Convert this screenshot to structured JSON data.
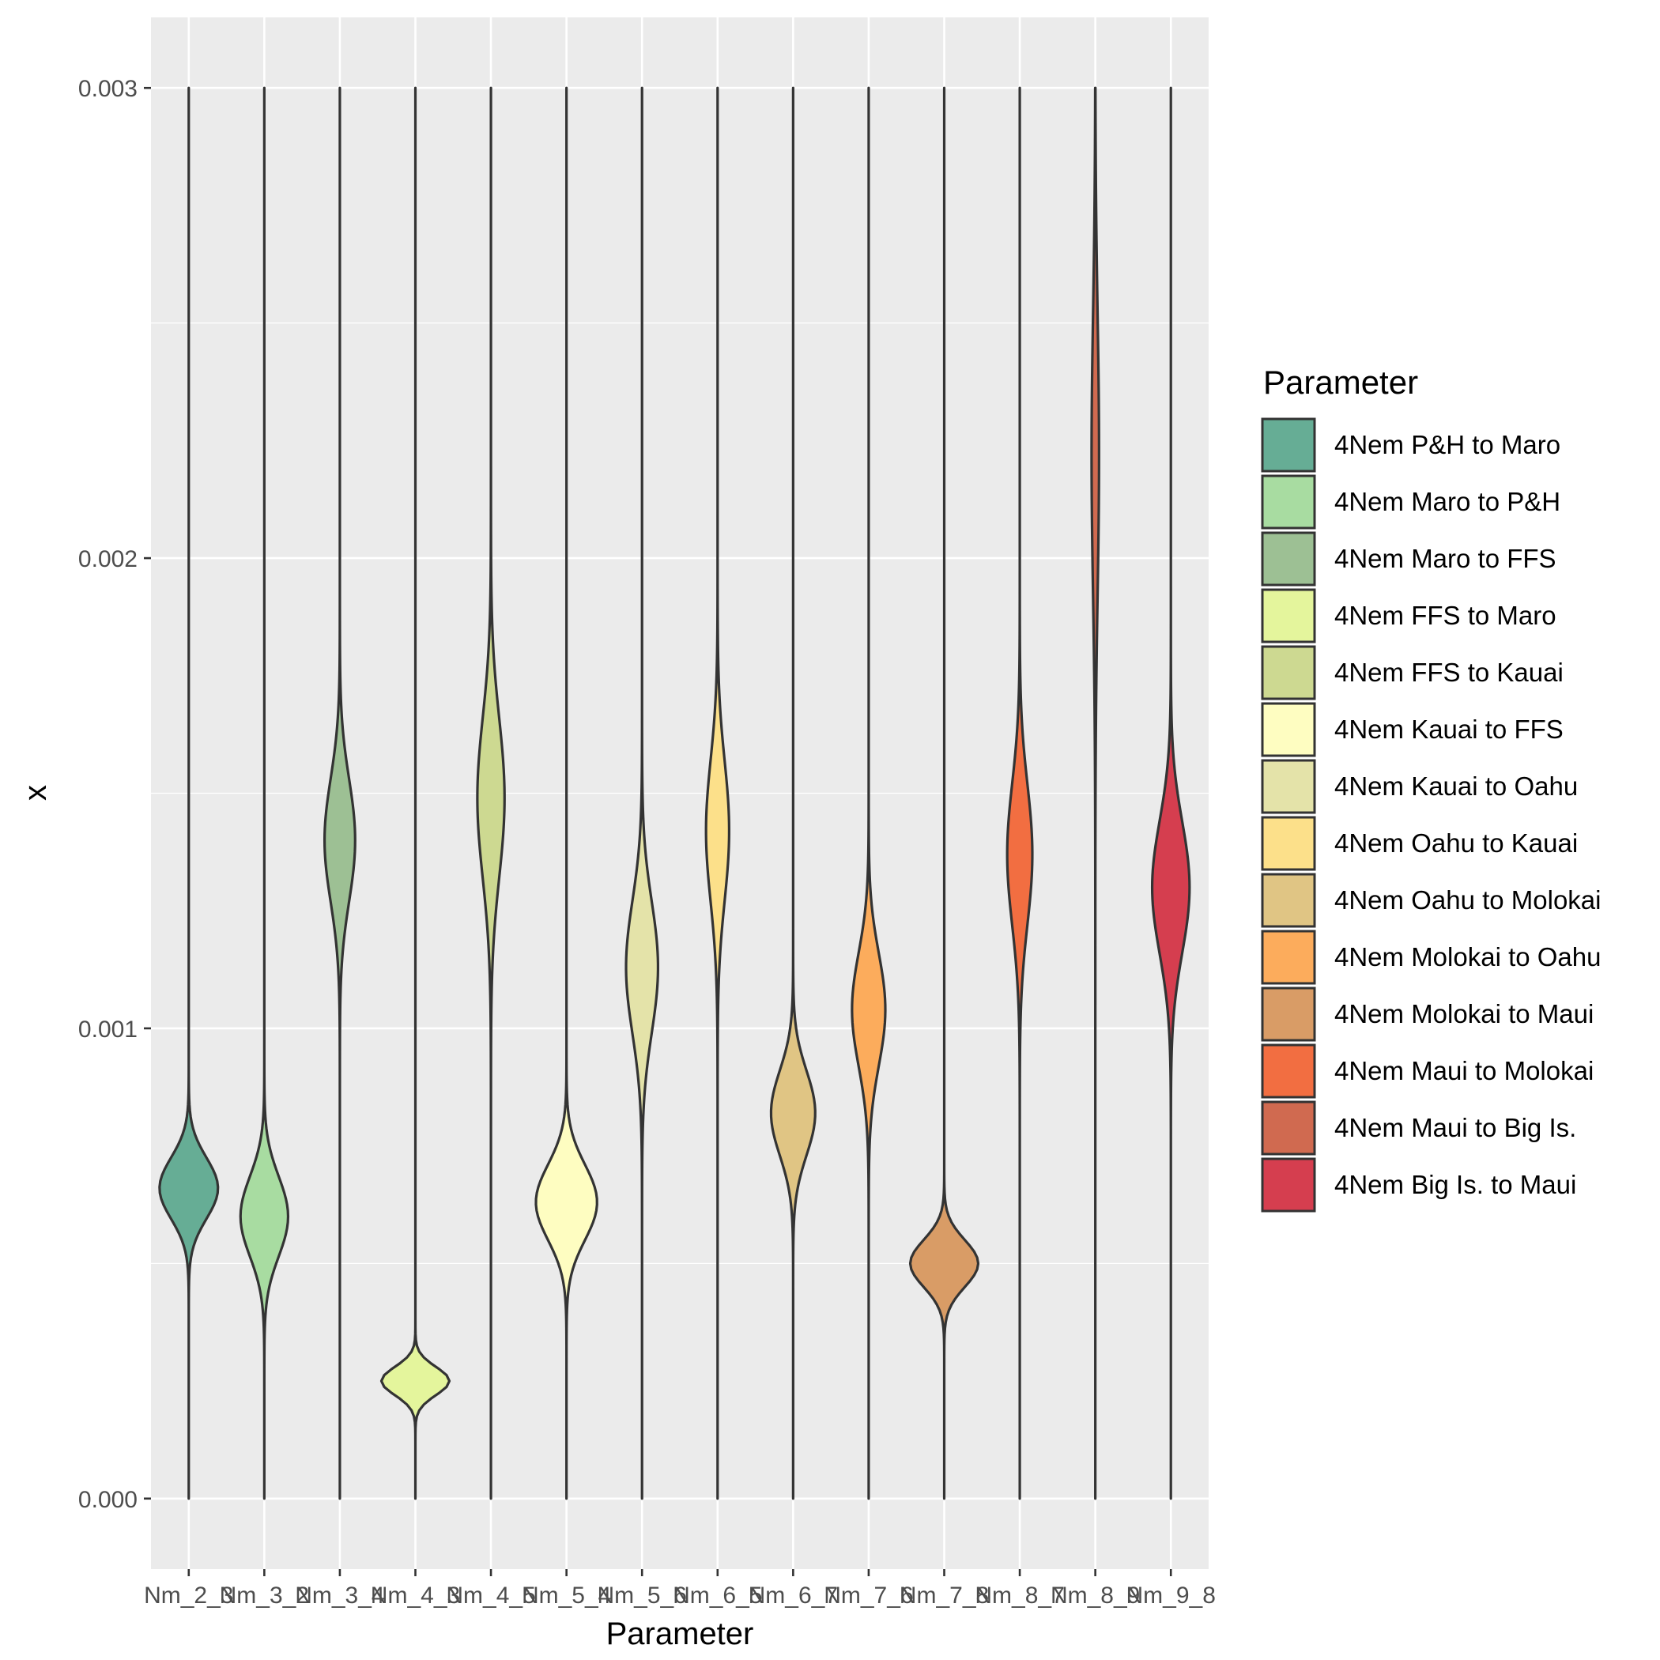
{
  "chart_data": {
    "type": "violin",
    "xlabel": "Parameter",
    "ylabel": "x",
    "ylim": [
      -0.00015,
      0.00315
    ],
    "yticks": [
      0.0,
      0.001,
      0.002,
      0.003
    ],
    "ytick_labels": [
      "0.000",
      "0.001",
      "0.002",
      "0.003"
    ],
    "grid": true,
    "legend": {
      "title": "Parameter",
      "position": "right"
    },
    "series": [
      {
        "category": "Nm_2_3",
        "label": "4Nem P&H to Maro",
        "color": "#66AD95",
        "min": 0.0,
        "max": 0.003,
        "mode": 0.00066,
        "sd": 6.5e-05,
        "width": 0.86
      },
      {
        "category": "Nm_3_2",
        "label": "4Nem Maro to P&H",
        "color": "#A8DCA1",
        "min": 0.0,
        "max": 0.003,
        "mode": 0.0006,
        "sd": 8.5e-05,
        "width": 0.7
      },
      {
        "category": "Nm_3_4",
        "label": "4Nem Maro to FFS",
        "color": "#9DC094",
        "min": 0.0,
        "max": 0.003,
        "mode": 0.0014,
        "sd": 0.00013,
        "width": 0.45
      },
      {
        "category": "Nm_4_3",
        "label": "4Nem FFS to Maro",
        "color": "#E4F59C",
        "min": 0.0,
        "max": 0.003,
        "mode": 0.00025,
        "sd": 3e-05,
        "width": 1.0
      },
      {
        "category": "Nm_4_5",
        "label": "4Nem FFS to Kauai",
        "color": "#CDD991",
        "min": 0.0,
        "max": 0.003,
        "mode": 0.00149,
        "sd": 0.00017,
        "width": 0.4
      },
      {
        "category": "Nm_5_4",
        "label": "4Nem Kauai to FFS",
        "color": "#FEFDC1",
        "min": 0.0,
        "max": 0.003,
        "mode": 0.00063,
        "sd": 8e-05,
        "width": 0.9
      },
      {
        "category": "Nm_5_6",
        "label": "4Nem Kauai to Oahu",
        "color": "#E4E3A9",
        "min": 0.0,
        "max": 0.003,
        "mode": 0.00113,
        "sd": 0.00014,
        "width": 0.47
      },
      {
        "category": "Nm_6_5",
        "label": "4Nem Oahu to Kauai",
        "color": "#FCE08A",
        "min": 0.0,
        "max": 0.003,
        "mode": 0.00142,
        "sd": 0.00015,
        "width": 0.34
      },
      {
        "category": "Nm_6_7",
        "label": "4Nem Oahu to Molokai",
        "color": "#E0C584",
        "min": 0.0,
        "max": 0.003,
        "mode": 0.00082,
        "sd": 9e-05,
        "width": 0.65
      },
      {
        "category": "Nm_7_6",
        "label": "4Nem Molokai to Oahu",
        "color": "#FCAC5C",
        "min": 0.0,
        "max": 0.003,
        "mode": 0.00104,
        "sd": 0.00012,
        "width": 0.49
      },
      {
        "category": "Nm_7_8",
        "label": "4Nem Molokai to Maui",
        "color": "#D99C66",
        "min": 0.0,
        "max": 0.003,
        "mode": 0.0005,
        "sd": 5e-05,
        "width": 1.0
      },
      {
        "category": "Nm_8_7",
        "label": "4Nem Maui to Molokai",
        "color": "#F26E41",
        "min": 0.0,
        "max": 0.003,
        "mode": 0.00137,
        "sd": 0.00015,
        "width": 0.37
      },
      {
        "category": "Nm_8_9",
        "label": "4Nem Maui to Big Is.",
        "color": "#D06A50",
        "min": 0.0,
        "max": 0.003,
        "mode": 0.00222,
        "sd": 0.0003,
        "width": 0.11
      },
      {
        "category": "Nm_9_8",
        "label": "4Nem Big Is. to Maui",
        "color": "#D53E4F",
        "min": 0.0,
        "max": 0.003,
        "mode": 0.0013,
        "sd": 0.00014,
        "width": 0.55
      }
    ]
  }
}
